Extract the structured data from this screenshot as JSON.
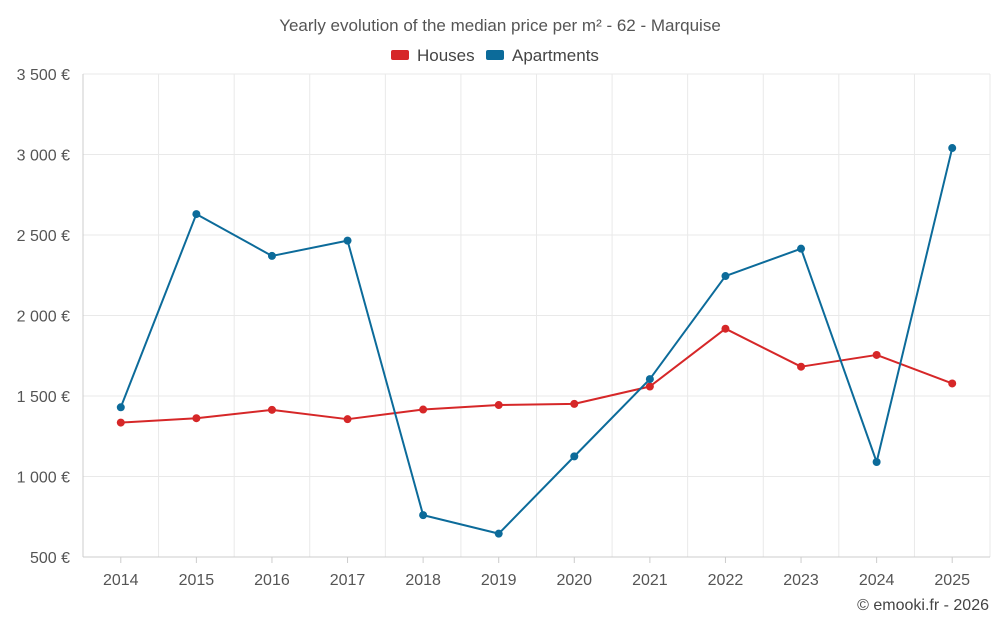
{
  "chart_data": {
    "type": "line",
    "title": "Yearly evolution of the median price per m² - 62 - Marquise",
    "categories": [
      "2014",
      "2015",
      "2016",
      "2017",
      "2018",
      "2019",
      "2020",
      "2021",
      "2022",
      "2023",
      "2024",
      "2025"
    ],
    "series": [
      {
        "name": "Houses",
        "color": "#d62728",
        "values": [
          1335,
          1362,
          1414,
          1356,
          1416,
          1444,
          1451,
          1559,
          1918,
          1682,
          1755,
          1578
        ]
      },
      {
        "name": "Apartments",
        "color": "#0c6b9a",
        "values": [
          1430,
          2630,
          2370,
          2465,
          760,
          645,
          1125,
          1605,
          2245,
          2415,
          1090,
          3040
        ]
      }
    ],
    "ylim": [
      500,
      3500
    ],
    "yticks": [
      500,
      1000,
      1500,
      2000,
      2500,
      3000,
      3500
    ],
    "ytick_labels": [
      "500 €",
      "1 000 €",
      "1 500 €",
      "2 000 €",
      "2 500 €",
      "3 000 €",
      "3 500 €"
    ],
    "xlabel": "",
    "ylabel": "",
    "grid": true,
    "legend_position": "top-center"
  },
  "credit": "© emooki.fr - 2026"
}
